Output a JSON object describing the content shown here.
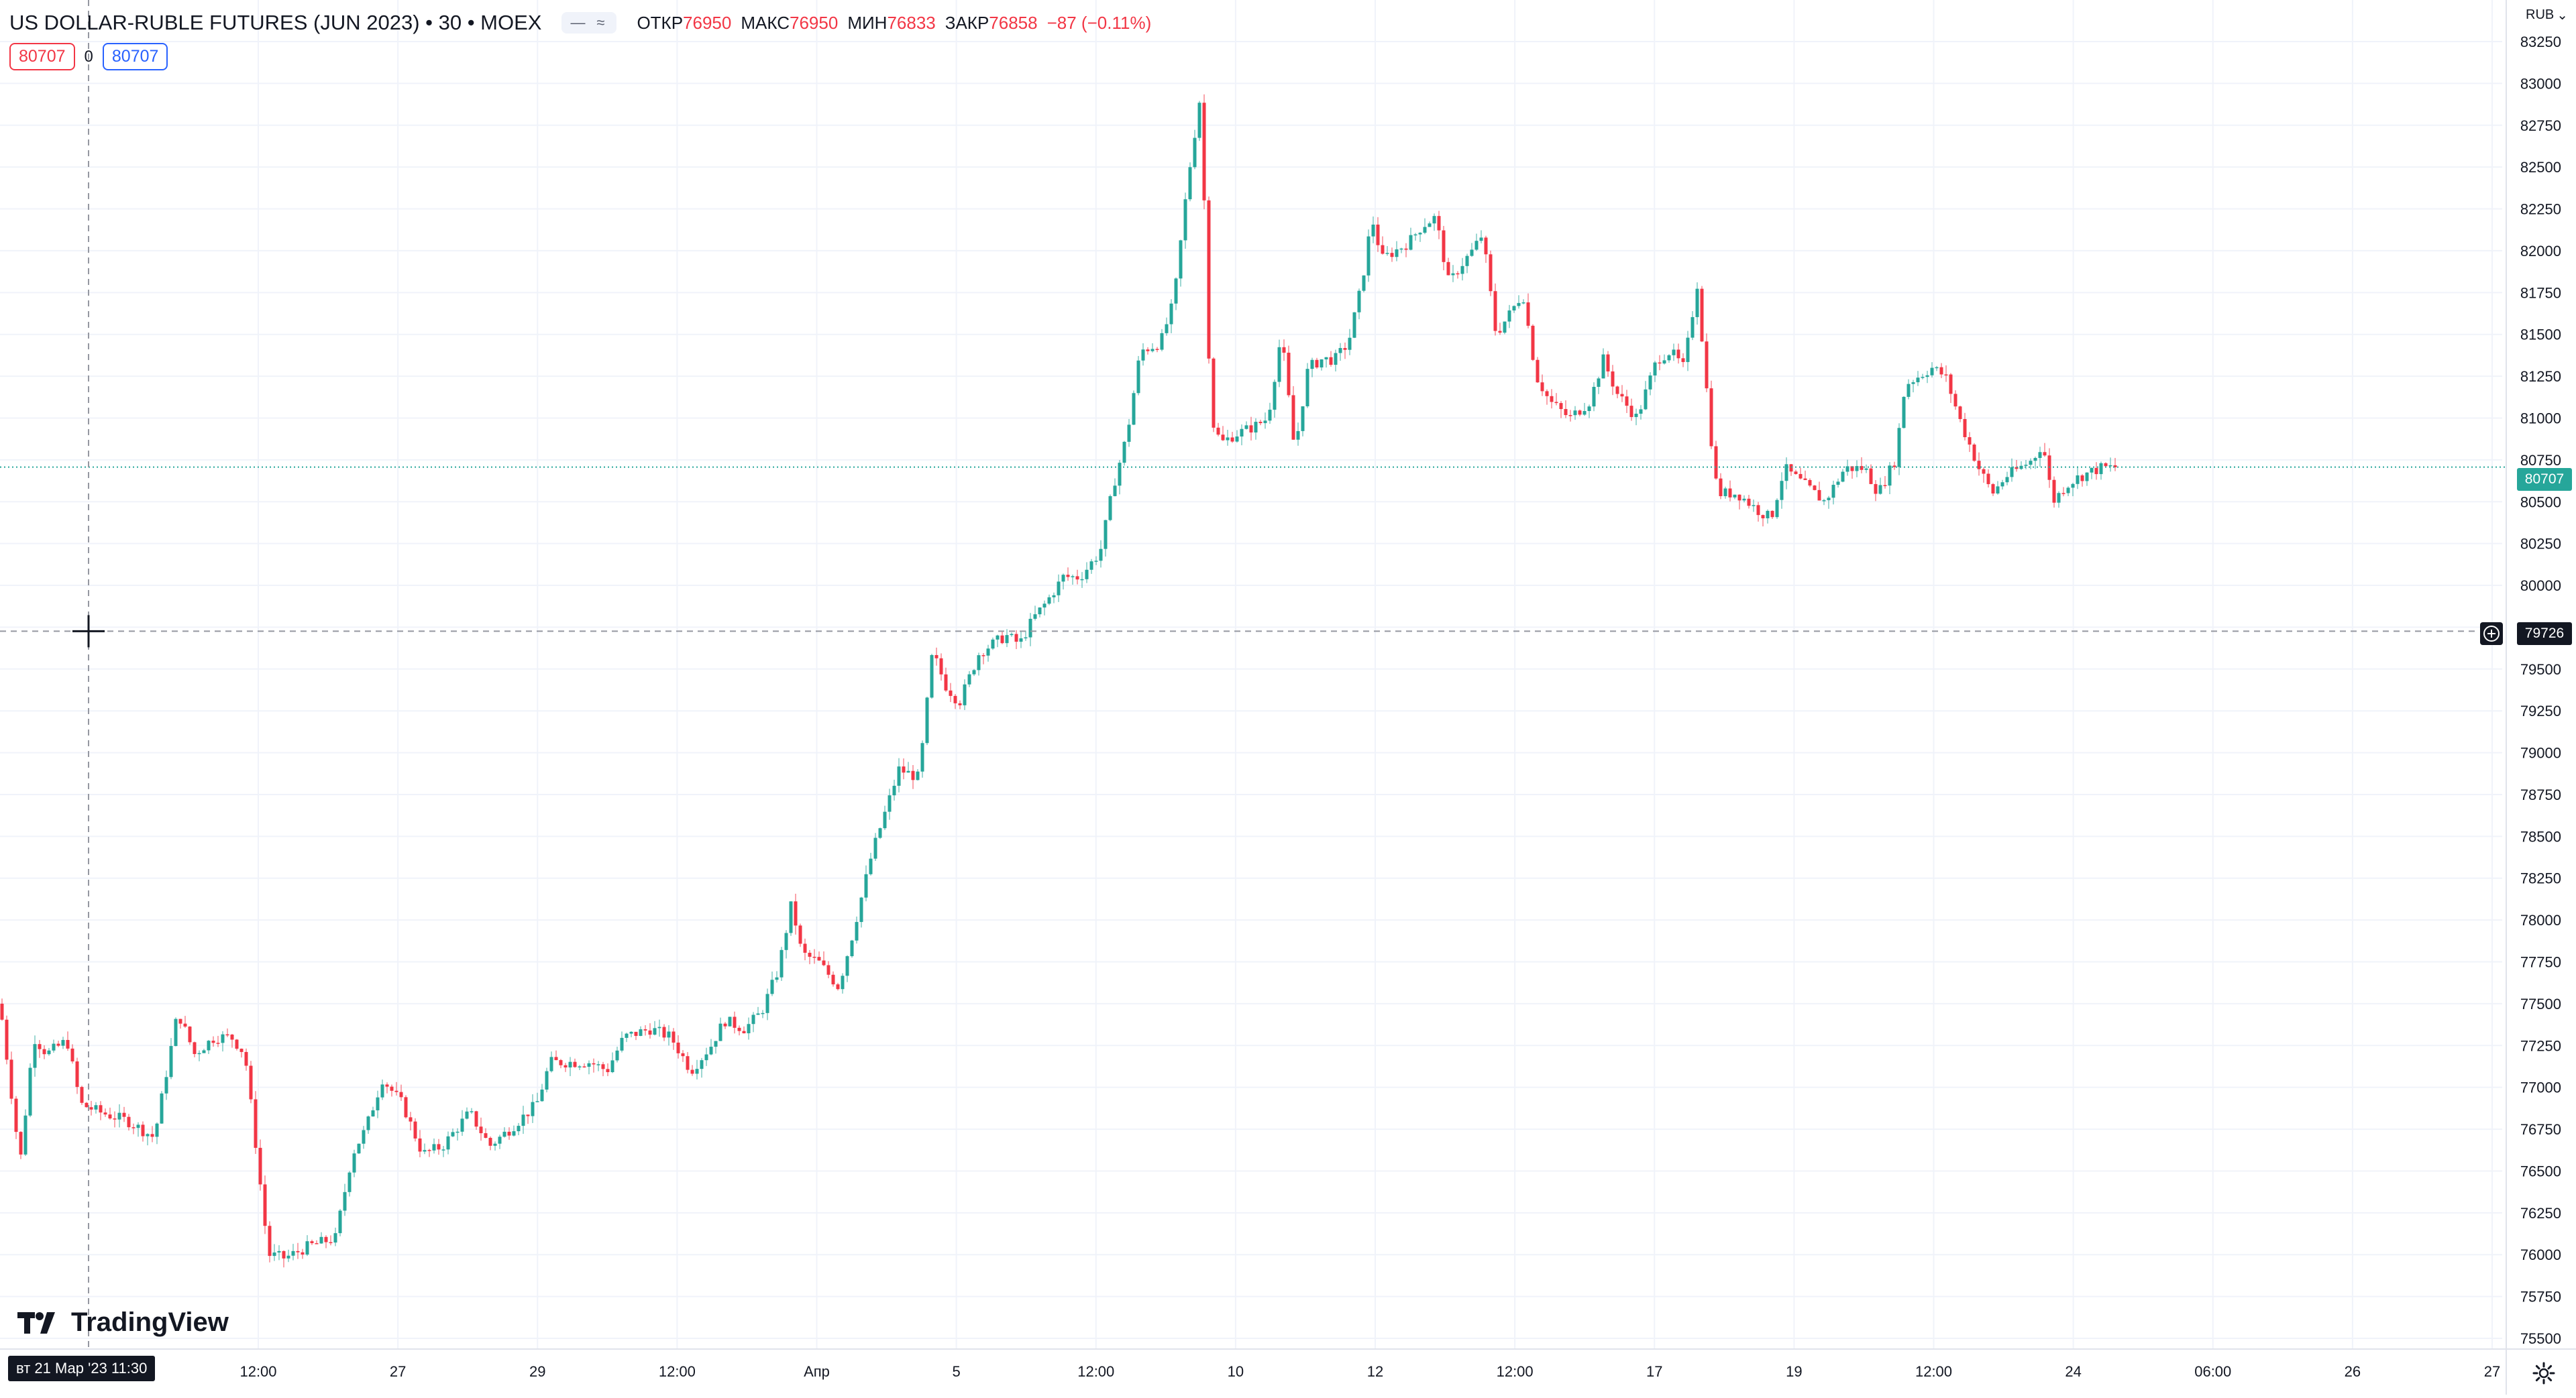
{
  "header": {
    "title": "US DOLLAR-RUBLE FUTURES (JUN 2023) • 30 • MOEX",
    "ohlc": [
      {
        "key": "ОТКР",
        "value": "76950"
      },
      {
        "key": "МАКС",
        "value": "76950"
      },
      {
        "key": "МИН",
        "value": "76833"
      },
      {
        "key": "ЗАКР",
        "value": "76858"
      }
    ],
    "change": "−87 (−0.11%)",
    "vis_icons": [
      "minus-icon",
      "wave-icon"
    ]
  },
  "order": {
    "sell": "80707",
    "spread": "0",
    "buy": "80707"
  },
  "currency": "RUB",
  "last_price": "80707",
  "crosshair_price": "79726",
  "crosshair_time": "вт 21 Мар '23   11:30",
  "logo_text": "TradingView",
  "colors": {
    "up": "#26a69a",
    "down": "#f23645",
    "grid": "#f0f3fa",
    "crosshair": "#9598a1",
    "last_line": "#26a69a"
  },
  "chart_data": {
    "type": "candlestick",
    "x_ticks": [
      "12:00",
      "27",
      "29",
      "12:00",
      "Апр",
      "5",
      "12:00",
      "10",
      "12",
      "12:00",
      "17",
      "19",
      "12:00",
      "24",
      "06:00",
      "26",
      "27"
    ],
    "y_ticks": [
      "83250",
      "83000",
      "82750",
      "82500",
      "82250",
      "82000",
      "81750",
      "81500",
      "81250",
      "81000",
      "80750",
      "80500",
      "80250",
      "80000",
      "79750",
      "79500",
      "79250",
      "79000",
      "78750",
      "78500",
      "78250",
      "78000",
      "77750",
      "77500",
      "77250",
      "77000",
      "76750",
      "76500",
      "76250",
      "76000",
      "75750",
      "75500"
    ],
    "ylim": [
      75500,
      83250
    ],
    "grid": true,
    "price_path": [
      {
        "x": 0,
        "y": 77500
      },
      {
        "x": 30,
        "y": 76550
      },
      {
        "x": 50,
        "y": 77300
      },
      {
        "x": 70,
        "y": 77200
      },
      {
        "x": 100,
        "y": 77280
      },
      {
        "x": 120,
        "y": 76900
      },
      {
        "x": 150,
        "y": 76850
      },
      {
        "x": 190,
        "y": 76800
      },
      {
        "x": 230,
        "y": 76700
      },
      {
        "x": 265,
        "y": 77450
      },
      {
        "x": 290,
        "y": 77200
      },
      {
        "x": 320,
        "y": 77300
      },
      {
        "x": 345,
        "y": 77300
      },
      {
        "x": 365,
        "y": 77200
      },
      {
        "x": 380,
        "y": 76700
      },
      {
        "x": 400,
        "y": 76000
      },
      {
        "x": 425,
        "y": 75980
      },
      {
        "x": 460,
        "y": 76050
      },
      {
        "x": 500,
        "y": 76100
      },
      {
        "x": 525,
        "y": 76600
      },
      {
        "x": 545,
        "y": 76750
      },
      {
        "x": 570,
        "y": 77050
      },
      {
        "x": 600,
        "y": 76900
      },
      {
        "x": 630,
        "y": 76600
      },
      {
        "x": 660,
        "y": 76650
      },
      {
        "x": 700,
        "y": 76850
      },
      {
        "x": 730,
        "y": 76650
      },
      {
        "x": 760,
        "y": 76750
      },
      {
        "x": 800,
        "y": 76900
      },
      {
        "x": 820,
        "y": 77150
      },
      {
        "x": 850,
        "y": 77150
      },
      {
        "x": 880,
        "y": 77150
      },
      {
        "x": 905,
        "y": 77100
      },
      {
        "x": 930,
        "y": 77300
      },
      {
        "x": 970,
        "y": 77350
      },
      {
        "x": 1000,
        "y": 77300
      },
      {
        "x": 1030,
        "y": 77100
      },
      {
        "x": 1060,
        "y": 77250
      },
      {
        "x": 1080,
        "y": 77400
      },
      {
        "x": 1110,
        "y": 77350
      },
      {
        "x": 1135,
        "y": 77450
      },
      {
        "x": 1160,
        "y": 77700
      },
      {
        "x": 1180,
        "y": 78100
      },
      {
        "x": 1195,
        "y": 77800
      },
      {
        "x": 1220,
        "y": 77750
      },
      {
        "x": 1250,
        "y": 77600
      },
      {
        "x": 1270,
        "y": 77900
      },
      {
        "x": 1300,
        "y": 78400
      },
      {
        "x": 1320,
        "y": 78650
      },
      {
        "x": 1340,
        "y": 78900
      },
      {
        "x": 1370,
        "y": 78850
      },
      {
        "x": 1390,
        "y": 79600
      },
      {
        "x": 1410,
        "y": 79400
      },
      {
        "x": 1430,
        "y": 79300
      },
      {
        "x": 1460,
        "y": 79600
      },
      {
        "x": 1500,
        "y": 79700
      },
      {
        "x": 1520,
        "y": 79650
      },
      {
        "x": 1540,
        "y": 79800
      },
      {
        "x": 1560,
        "y": 79900
      },
      {
        "x": 1585,
        "y": 80050
      },
      {
        "x": 1610,
        "y": 80050
      },
      {
        "x": 1640,
        "y": 80200
      },
      {
        "x": 1660,
        "y": 80600
      },
      {
        "x": 1680,
        "y": 80900
      },
      {
        "x": 1700,
        "y": 81400
      },
      {
        "x": 1730,
        "y": 81450
      },
      {
        "x": 1750,
        "y": 81700
      },
      {
        "x": 1770,
        "y": 82400
      },
      {
        "x": 1790,
        "y": 82950
      },
      {
        "x": 1805,
        "y": 81000
      },
      {
        "x": 1820,
        "y": 80850
      },
      {
        "x": 1840,
        "y": 80900
      },
      {
        "x": 1870,
        "y": 80950
      },
      {
        "x": 1890,
        "y": 81000
      },
      {
        "x": 1910,
        "y": 81500
      },
      {
        "x": 1930,
        "y": 80800
      },
      {
        "x": 1950,
        "y": 81300
      },
      {
        "x": 1970,
        "y": 81350
      },
      {
        "x": 1990,
        "y": 81350
      },
      {
        "x": 2010,
        "y": 81450
      },
      {
        "x": 2030,
        "y": 81800
      },
      {
        "x": 2045,
        "y": 82200
      },
      {
        "x": 2060,
        "y": 81950
      },
      {
        "x": 2080,
        "y": 82000
      },
      {
        "x": 2100,
        "y": 82050
      },
      {
        "x": 2120,
        "y": 82150
      },
      {
        "x": 2140,
        "y": 82200
      },
      {
        "x": 2160,
        "y": 81800
      },
      {
        "x": 2175,
        "y": 81900
      },
      {
        "x": 2195,
        "y": 82000
      },
      {
        "x": 2210,
        "y": 82100
      },
      {
        "x": 2230,
        "y": 81500
      },
      {
        "x": 2255,
        "y": 81650
      },
      {
        "x": 2270,
        "y": 81750
      },
      {
        "x": 2290,
        "y": 81250
      },
      {
        "x": 2310,
        "y": 81100
      },
      {
        "x": 2340,
        "y": 81000
      },
      {
        "x": 2370,
        "y": 81100
      },
      {
        "x": 2390,
        "y": 81350
      },
      {
        "x": 2410,
        "y": 81150
      },
      {
        "x": 2440,
        "y": 81000
      },
      {
        "x": 2470,
        "y": 81350
      },
      {
        "x": 2490,
        "y": 81400
      },
      {
        "x": 2510,
        "y": 81300
      },
      {
        "x": 2530,
        "y": 81800
      },
      {
        "x": 2550,
        "y": 80900
      },
      {
        "x": 2560,
        "y": 80550
      },
      {
        "x": 2590,
        "y": 80550
      },
      {
        "x": 2620,
        "y": 80450
      },
      {
        "x": 2640,
        "y": 80400
      },
      {
        "x": 2660,
        "y": 80700
      },
      {
        "x": 2690,
        "y": 80600
      },
      {
        "x": 2720,
        "y": 80500
      },
      {
        "x": 2750,
        "y": 80700
      },
      {
        "x": 2780,
        "y": 80700
      },
      {
        "x": 2800,
        "y": 80550
      },
      {
        "x": 2825,
        "y": 80750
      },
      {
        "x": 2840,
        "y": 81200
      },
      {
        "x": 2860,
        "y": 81250
      },
      {
        "x": 2880,
        "y": 81300
      },
      {
        "x": 2900,
        "y": 81250
      },
      {
        "x": 2925,
        "y": 80950
      },
      {
        "x": 2950,
        "y": 80700
      },
      {
        "x": 2970,
        "y": 80550
      },
      {
        "x": 2990,
        "y": 80650
      },
      {
        "x": 3010,
        "y": 80700
      },
      {
        "x": 3030,
        "y": 80750
      },
      {
        "x": 3045,
        "y": 80850
      },
      {
        "x": 3060,
        "y": 80500
      },
      {
        "x": 3080,
        "y": 80600
      },
      {
        "x": 3100,
        "y": 80650
      },
      {
        "x": 3130,
        "y": 80700
      },
      {
        "x": 3155,
        "y": 80707
      }
    ]
  }
}
